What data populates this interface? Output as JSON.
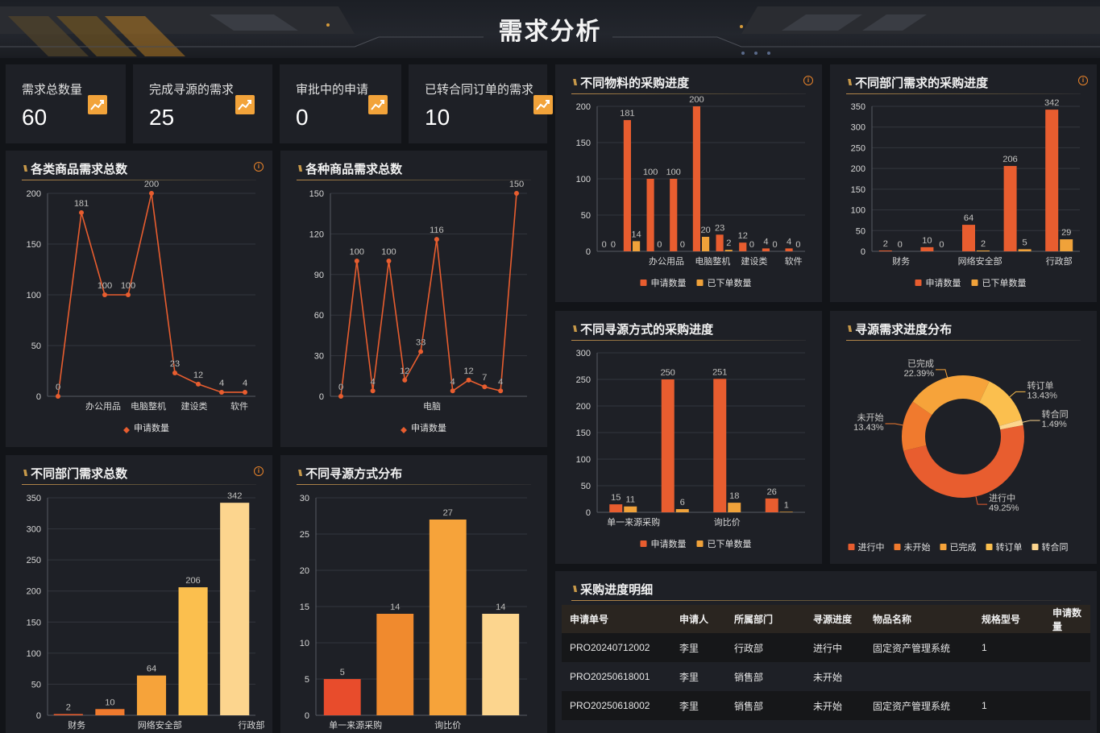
{
  "header": {
    "title": "需求分析"
  },
  "stats": [
    {
      "label": "需求总数量",
      "value": "60"
    },
    {
      "label": "完成寻源的需求",
      "value": "25"
    },
    {
      "label": "审批中的申请",
      "value": "0"
    },
    {
      "label": "已转合同订单的需求",
      "value": "10"
    }
  ],
  "colors": {
    "orange_red": "#e85d2f",
    "orange": "#f0a23a",
    "panel": "#1e2026"
  },
  "panels": {
    "category_line": {
      "title": "各类商品需求总数"
    },
    "item_line": {
      "title": "各种商品需求总数"
    },
    "material_bar": {
      "title": "不同物料的采购进度"
    },
    "dept_progress": {
      "title": "不同部门需求的采购进度"
    },
    "sourcing_progress": {
      "title": "不同寻源方式的采购进度"
    },
    "sourcing_pie": {
      "title": "寻源需求进度分布"
    },
    "dept_total": {
      "title": "不同部门需求总数"
    },
    "sourcing_dist": {
      "title": "不同寻源方式分布"
    },
    "detail": {
      "title": "采购进度明细"
    }
  },
  "chart_data": [
    {
      "id": "category_line",
      "type": "line",
      "x_ticks": [
        "",
        "",
        "",
        "办公用品",
        "",
        "电脑整机",
        "",
        "建设类",
        "",
        "软件"
      ],
      "series": [
        {
          "name": "申请数量",
          "values": [
            0,
            181,
            100,
            100,
            200,
            23,
            12,
            4,
            4
          ]
        }
      ],
      "ylim": [
        0,
        200
      ],
      "yticks": [
        0,
        50,
        100,
        150,
        200
      ],
      "legend": "bottom",
      "grid": true
    },
    {
      "id": "item_line",
      "type": "line",
      "x_ticks": [
        "电脑"
      ],
      "series": [
        {
          "name": "申请数量",
          "values": [
            0,
            100,
            4,
            100,
            12,
            33,
            116,
            4,
            12,
            7,
            4,
            150
          ]
        }
      ],
      "ylim": [
        0,
        150
      ],
      "yticks": [
        0,
        30,
        60,
        90,
        120,
        150
      ],
      "legend": "bottom",
      "grid": true
    },
    {
      "id": "material_bar",
      "type": "bar",
      "x_ticks": [
        "办公用品",
        "电脑整机",
        "建设类",
        "软件"
      ],
      "series": [
        {
          "name": "申请数量",
          "values": [
            0,
            181,
            100,
            100,
            200,
            23,
            12,
            4,
            4
          ]
        },
        {
          "name": "已下单数量",
          "values": [
            0,
            14,
            0,
            0,
            20,
            2,
            0,
            0,
            0
          ]
        }
      ],
      "ylim": [
        0,
        200
      ],
      "yticks": [
        0,
        50,
        100,
        150,
        200
      ],
      "legend": "bottom",
      "grid": true
    },
    {
      "id": "dept_progress",
      "type": "bar",
      "x_ticks": [
        "财务",
        "网络安全部",
        "行政部"
      ],
      "series": [
        {
          "name": "申请数量",
          "values": [
            2,
            10,
            64,
            206,
            342
          ]
        },
        {
          "name": "已下单数量",
          "values": [
            0,
            0,
            2,
            5,
            29
          ]
        }
      ],
      "ylim": [
        0,
        350
      ],
      "yticks": [
        0,
        50,
        100,
        150,
        200,
        250,
        300,
        350
      ],
      "legend": "bottom",
      "grid": true
    },
    {
      "id": "sourcing_progress",
      "type": "bar",
      "x_ticks": [
        "单一来源采购",
        "询比价"
      ],
      "series": [
        {
          "name": "申请数量",
          "values": [
            15,
            250,
            251,
            26
          ]
        },
        {
          "name": "已下单数量",
          "values": [
            11,
            6,
            18,
            1
          ]
        }
      ],
      "ylim": [
        0,
        300
      ],
      "yticks": [
        0,
        50,
        100,
        150,
        200,
        250,
        300
      ],
      "legend": "bottom",
      "grid": true
    },
    {
      "id": "sourcing_pie",
      "type": "pie",
      "slices": [
        {
          "label": "进行中",
          "value": 49.25,
          "text": "进行中\n49.25%",
          "color": "#e85d2f"
        },
        {
          "label": "未开始",
          "value": 13.43,
          "text": "未开始\n13.43%",
          "color": "#f07a2e"
        },
        {
          "label": "已完成",
          "value": 22.39,
          "text": "已完成\n22.39%",
          "color": "#f6a33a"
        },
        {
          "label": "转订单",
          "value": 13.43,
          "text": "转订单\n13.43%",
          "color": "#fbbf4e"
        },
        {
          "label": "转合同",
          "value": 1.49,
          "text": "转合同\n1.49%",
          "color": "#fcd58e"
        }
      ],
      "legend": "bottom"
    },
    {
      "id": "dept_total",
      "type": "bar",
      "x_ticks": [
        "财务",
        "网络安全部",
        "行政部"
      ],
      "values": [
        2,
        10,
        64,
        206,
        342
      ],
      "colors": [
        "#e85d2f",
        "#f07a2e",
        "#f6a33a",
        "#fbbf4e",
        "#fcd58e"
      ],
      "ylim": [
        0,
        350
      ],
      "yticks": [
        0,
        50,
        100,
        150,
        200,
        250,
        300,
        350
      ],
      "grid": true
    },
    {
      "id": "sourcing_dist",
      "type": "bar",
      "x_ticks": [
        "单一来源采购",
        "询比价"
      ],
      "values": [
        5,
        14,
        27,
        14
      ],
      "colors": [
        "#e84c2c",
        "#f08a2e",
        "#f6a33a",
        "#fcd58e"
      ],
      "ylim": [
        0,
        30
      ],
      "yticks": [
        0,
        5,
        10,
        15,
        20,
        25,
        30
      ],
      "grid": true
    }
  ],
  "detail_table": {
    "columns": [
      "申请单号",
      "申请人",
      "所属部门",
      "寻源进度",
      "物品名称",
      "规格型号",
      "申请数量"
    ],
    "rows": [
      [
        "PRO20240712002",
        "李里",
        "行政部",
        "进行中",
        "固定资产管理系统",
        "1",
        ""
      ],
      [
        "PRO20250618001",
        "李里",
        "销售部",
        "未开始",
        "",
        "",
        ""
      ],
      [
        "PRO20250618002",
        "李里",
        "销售部",
        "未开始",
        "固定资产管理系统",
        "1",
        ""
      ]
    ]
  }
}
